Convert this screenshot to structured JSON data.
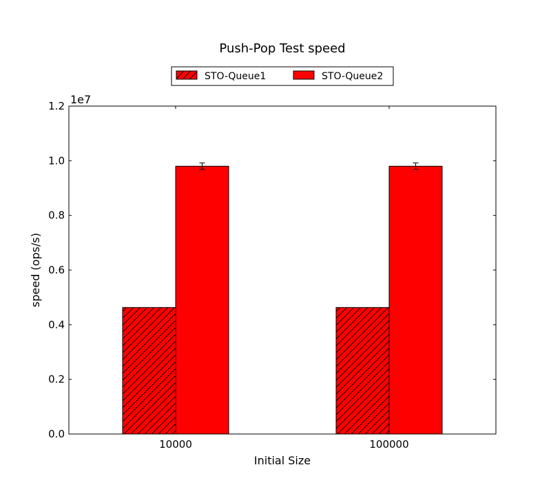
{
  "chart_data": {
    "type": "bar",
    "title": "Push-Pop Test speed",
    "xlabel": "Initial Size",
    "ylabel": "speed (ops/s)",
    "y_offset_label": "1e7",
    "y_multiplier": 10000000,
    "categories": [
      "10000",
      "100000"
    ],
    "ylim": [
      0,
      12000000
    ],
    "yticks": [
      0,
      2000000,
      4000000,
      6000000,
      8000000,
      10000000,
      12000000
    ],
    "ytick_labels": [
      "0.0",
      "0.2",
      "0.4",
      "0.6",
      "0.8",
      "1.0",
      "1.2"
    ],
    "series": [
      {
        "name": "STO-Queue1",
        "values": [
          4630000,
          4630000
        ],
        "errors": [
          0,
          0
        ],
        "color": "#ff0000",
        "hatch": true
      },
      {
        "name": "STO-Queue2",
        "values": [
          9800000,
          9800000
        ],
        "errors": [
          120000,
          120000
        ],
        "color": "#ff0000",
        "hatch": false
      }
    ],
    "legend_position": "top-center",
    "grid": false
  }
}
